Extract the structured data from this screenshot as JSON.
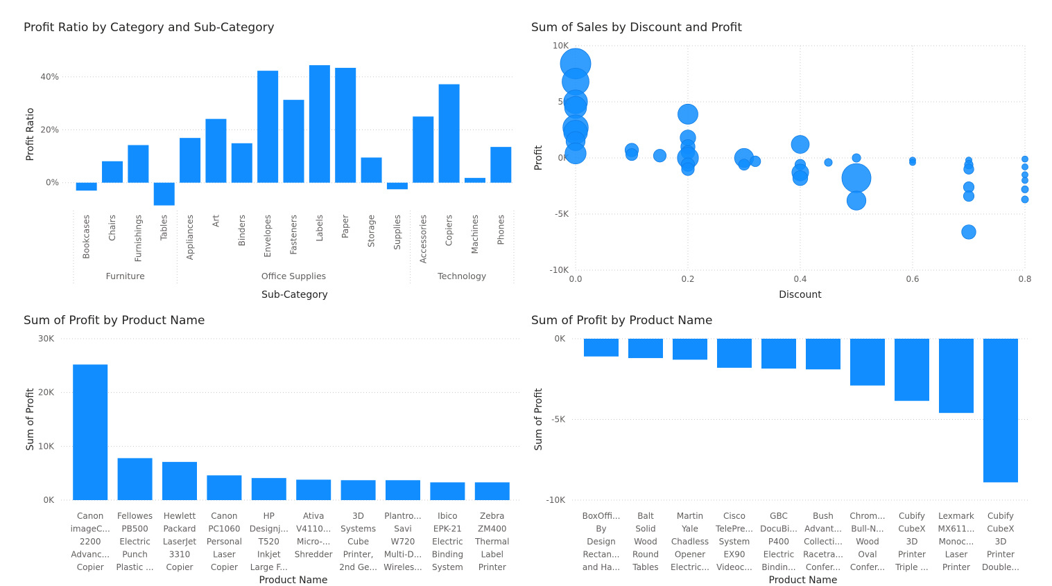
{
  "colors": {
    "bar": "#118dff",
    "grid": "#c8c6c4"
  },
  "chart_data": [
    {
      "id": "c1",
      "type": "bar",
      "title": "Profit Ratio by Category and Sub-Category",
      "xlabel": "Sub-Category",
      "ylabel": "Profit Ratio",
      "ylim": [
        -0.095,
        0.46
      ],
      "yticks": [
        {
          "value": 0.0,
          "label": "0%"
        },
        {
          "value": 0.2,
          "label": "20%"
        },
        {
          "value": 0.4,
          "label": "40%"
        }
      ],
      "groups": [
        {
          "name": "Furniture",
          "categories": [
            "Bookcases",
            "Chairs",
            "Furnishings",
            "Tables"
          ],
          "values": [
            -0.03,
            0.081,
            0.142,
            -0.086
          ]
        },
        {
          "name": "Office Supplies",
          "categories": [
            "Appliances",
            "Art",
            "Binders",
            "Envelopes",
            "Fasteners",
            "Labels",
            "Paper",
            "Storage",
            "Supplies"
          ],
          "values": [
            0.169,
            0.241,
            0.149,
            0.423,
            0.313,
            0.444,
            0.434,
            0.095,
            -0.025
          ]
        },
        {
          "name": "Technology",
          "categories": [
            "Accessories",
            "Copiers",
            "Machines",
            "Phones"
          ],
          "values": [
            0.25,
            0.372,
            0.018,
            0.135
          ]
        }
      ]
    },
    {
      "id": "c2",
      "type": "scatter",
      "title": "Sum of Sales by Discount and Profit",
      "xlabel": "Discount",
      "ylabel": "Profit",
      "xlim": [
        0,
        0.8
      ],
      "ylim": [
        -10000,
        10000
      ],
      "xticks": [
        {
          "value": 0.0,
          "label": "0.0"
        },
        {
          "value": 0.2,
          "label": "0.2"
        },
        {
          "value": 0.4,
          "label": "0.4"
        },
        {
          "value": 0.6,
          "label": "0.6"
        },
        {
          "value": 0.8,
          "label": "0.8"
        }
      ],
      "yticks": [
        {
          "value": 10000,
          "label": "10K"
        },
        {
          "value": 5000,
          "label": "5K"
        },
        {
          "value": 0,
          "label": "0K"
        },
        {
          "value": -5000,
          "label": "-5K"
        },
        {
          "value": -10000,
          "label": "-10K"
        }
      ],
      "points": [
        {
          "x": 0.0,
          "y": 8400,
          "sales": 23000
        },
        {
          "x": 0.0,
          "y": 6800,
          "sales": 18000
        },
        {
          "x": 0.0,
          "y": 5000,
          "sales": 14000
        },
        {
          "x": 0.0,
          "y": 4500,
          "sales": 12000
        },
        {
          "x": 0.0,
          "y": 2700,
          "sales": 16000
        },
        {
          "x": 0.0,
          "y": 2300,
          "sales": 14000
        },
        {
          "x": 0.0,
          "y": 1500,
          "sales": 9000
        },
        {
          "x": 0.0,
          "y": 400,
          "sales": 11000
        },
        {
          "x": 0.1,
          "y": 700,
          "sales": 4500
        },
        {
          "x": 0.1,
          "y": 300,
          "sales": 3500
        },
        {
          "x": 0.15,
          "y": 200,
          "sales": 4000
        },
        {
          "x": 0.2,
          "y": 3900,
          "sales": 10000
        },
        {
          "x": 0.2,
          "y": 1800,
          "sales": 6000
        },
        {
          "x": 0.2,
          "y": 1000,
          "sales": 5000
        },
        {
          "x": 0.2,
          "y": 500,
          "sales": 4500
        },
        {
          "x": 0.2,
          "y": 0,
          "sales": 11000
        },
        {
          "x": 0.2,
          "y": -600,
          "sales": 4500
        },
        {
          "x": 0.2,
          "y": -1000,
          "sales": 4000
        },
        {
          "x": 0.3,
          "y": 0,
          "sales": 9000
        },
        {
          "x": 0.3,
          "y": -600,
          "sales": 3000
        },
        {
          "x": 0.32,
          "y": -300,
          "sales": 2800
        },
        {
          "x": 0.4,
          "y": 1200,
          "sales": 8000
        },
        {
          "x": 0.4,
          "y": -600,
          "sales": 2800
        },
        {
          "x": 0.4,
          "y": -1300,
          "sales": 7000
        },
        {
          "x": 0.4,
          "y": -1800,
          "sales": 5500
        },
        {
          "x": 0.45,
          "y": -400,
          "sales": 1500
        },
        {
          "x": 0.5,
          "y": 0,
          "sales": 1800
        },
        {
          "x": 0.5,
          "y": -1800,
          "sales": 21000
        },
        {
          "x": 0.5,
          "y": -3800,
          "sales": 9000
        },
        {
          "x": 0.6,
          "y": -200,
          "sales": 900
        },
        {
          "x": 0.6,
          "y": -400,
          "sales": 900
        },
        {
          "x": 0.7,
          "y": -200,
          "sales": 1000
        },
        {
          "x": 0.7,
          "y": -600,
          "sales": 1800
        },
        {
          "x": 0.7,
          "y": -1000,
          "sales": 2500
        },
        {
          "x": 0.7,
          "y": -2600,
          "sales": 2800
        },
        {
          "x": 0.7,
          "y": -3400,
          "sales": 2800
        },
        {
          "x": 0.7,
          "y": -6600,
          "sales": 5000
        },
        {
          "x": 0.8,
          "y": -100,
          "sales": 900
        },
        {
          "x": 0.8,
          "y": -800,
          "sales": 900
        },
        {
          "x": 0.8,
          "y": -1500,
          "sales": 900
        },
        {
          "x": 0.8,
          "y": -2000,
          "sales": 900
        },
        {
          "x": 0.8,
          "y": -2800,
          "sales": 1200
        },
        {
          "x": 0.8,
          "y": -3700,
          "sales": 1200
        }
      ]
    },
    {
      "id": "c3",
      "type": "bar",
      "title": "Sum of Profit by Product Name",
      "xlabel": "Product Name",
      "ylabel": "Sum of Profit",
      "ylim": [
        0,
        30000
      ],
      "yticks": [
        {
          "value": 0,
          "label": "0K"
        },
        {
          "value": 10000,
          "label": "10K"
        },
        {
          "value": 20000,
          "label": "20K"
        },
        {
          "value": 30000,
          "label": "30K"
        }
      ],
      "categories": [
        [
          "Canon",
          "imageC...",
          "2200",
          "Advanc...",
          "Copier"
        ],
        [
          "Fellowes",
          "PB500",
          "Electric",
          "Punch",
          "Plastic ..."
        ],
        [
          "Hewlett",
          "Packard",
          "LaserJet",
          "3310",
          "Copier"
        ],
        [
          "Canon",
          "PC1060",
          "Personal",
          "Laser",
          "Copier"
        ],
        [
          "HP",
          "Designj...",
          "T520",
          "Inkjet",
          "Large F..."
        ],
        [
          "Ativa",
          "V4110...",
          "Micro-...",
          "Shredder"
        ],
        [
          "3D",
          "Systems",
          "Cube",
          "Printer,",
          "2nd Ge..."
        ],
        [
          "Plantro...",
          "Savi",
          "W720",
          "Multi-D...",
          "Wireles..."
        ],
        [
          "Ibico",
          "EPK-21",
          "Electric",
          "Binding",
          "System"
        ],
        [
          "Zebra",
          "ZM400",
          "Thermal",
          "Label",
          "Printer"
        ]
      ],
      "values": [
        25200,
        7800,
        7100,
        4600,
        4100,
        3800,
        3700,
        3700,
        3300,
        3300
      ]
    },
    {
      "id": "c4",
      "type": "bar",
      "title": "Sum of Profit by Product Name",
      "xlabel": "Product Name",
      "ylabel": "Sum of Profit",
      "ylim": [
        -10000,
        0
      ],
      "yticks": [
        {
          "value": 0,
          "label": "0K"
        },
        {
          "value": -5000,
          "label": "-5K"
        },
        {
          "value": -10000,
          "label": "-10K"
        }
      ],
      "categories": [
        [
          "BoxOffi...",
          "By",
          "Design",
          "Rectan...",
          "and Ha..."
        ],
        [
          "Balt",
          "Solid",
          "Wood",
          "Round",
          "Tables"
        ],
        [
          "Martin",
          "Yale",
          "Chadless",
          "Opener",
          "Electric..."
        ],
        [
          "Cisco",
          "TelePre...",
          "System",
          "EX90",
          "Videoc..."
        ],
        [
          "GBC",
          "DocuBi...",
          "P400",
          "Electric",
          "Bindin..."
        ],
        [
          "Bush",
          "Advant...",
          "Collecti...",
          "Racetra...",
          "Confer..."
        ],
        [
          "Chrom...",
          "Bull-N...",
          "Wood",
          "Oval",
          "Confer..."
        ],
        [
          "Cubify",
          "CubeX",
          "3D",
          "Printer",
          "Triple ..."
        ],
        [
          "Lexmark",
          "MX611...",
          "Monoc...",
          "Laser",
          "Printer"
        ],
        [
          "Cubify",
          "CubeX",
          "3D",
          "Printer",
          "Double..."
        ]
      ],
      "values": [
        -1100,
        -1200,
        -1300,
        -1800,
        -1850,
        -1900,
        -2900,
        -3850,
        -4600,
        -8900
      ]
    }
  ]
}
